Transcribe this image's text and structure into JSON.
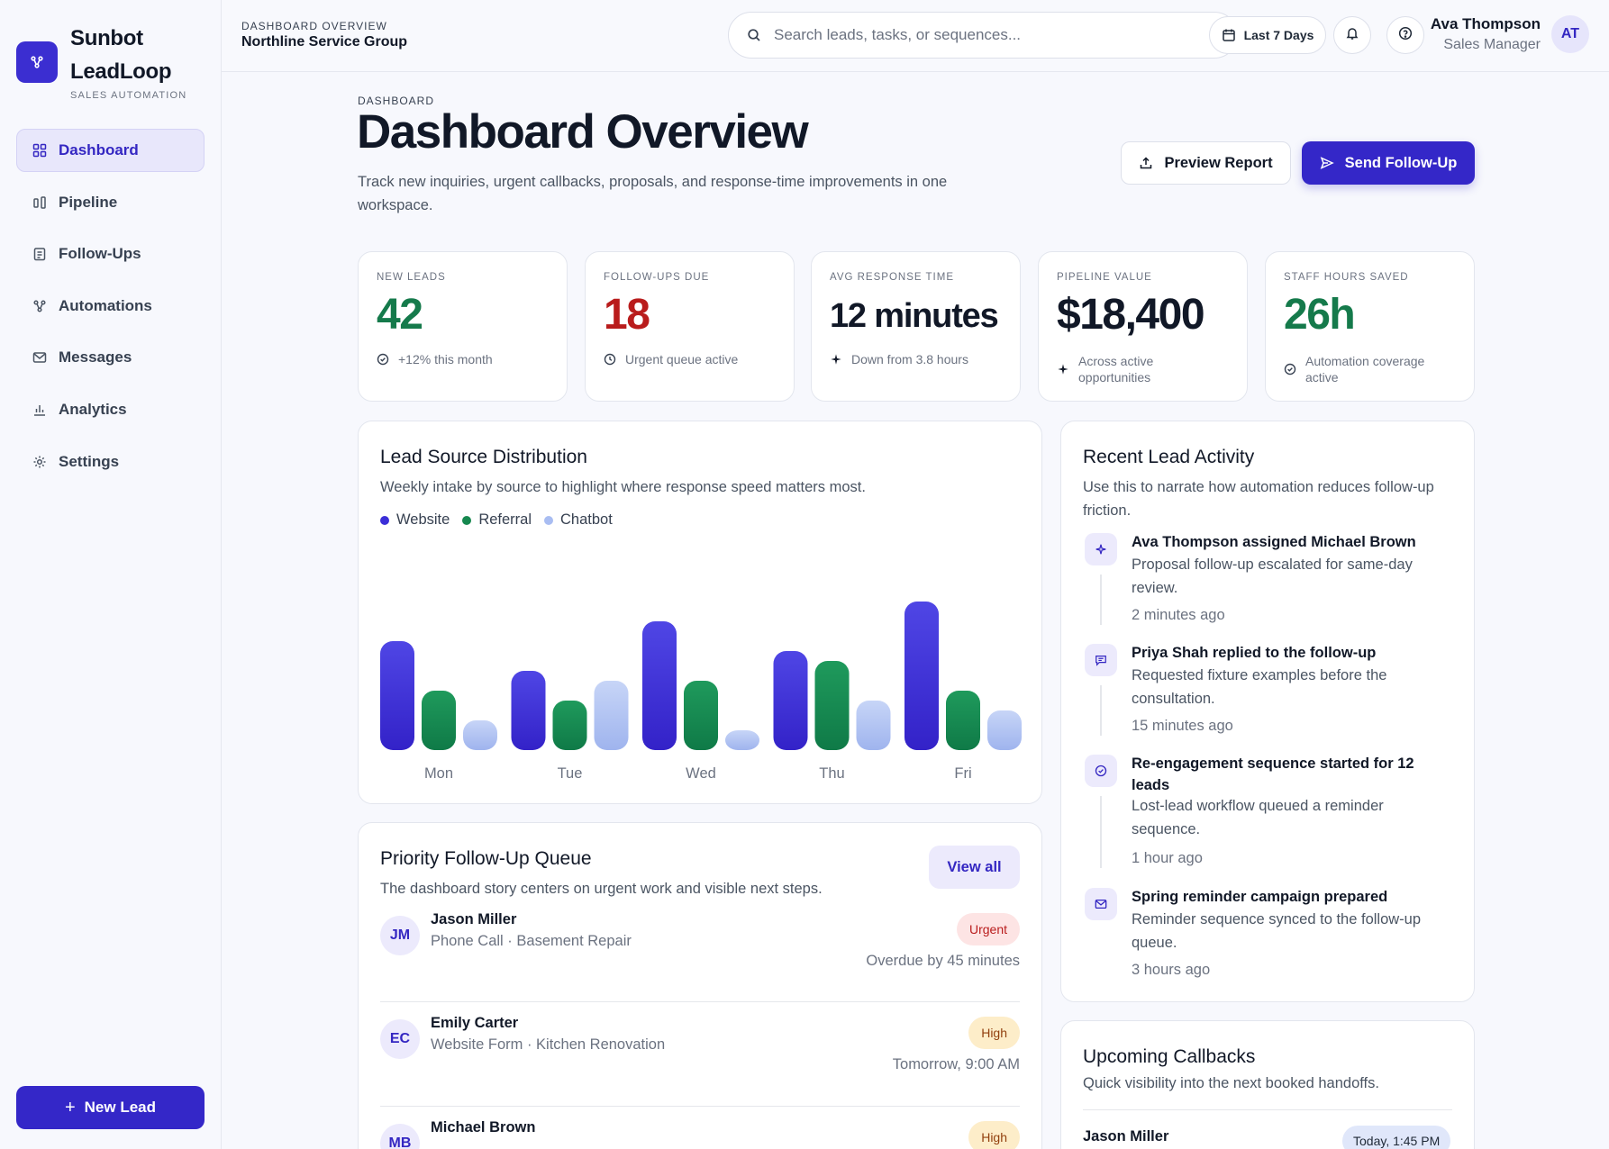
{
  "brand": {
    "name": "Sunbot LeadLoop",
    "tagline": "SALES AUTOMATION"
  },
  "sidebar": {
    "items": [
      {
        "label": "Dashboard",
        "icon": "grid-icon",
        "active": true
      },
      {
        "label": "Pipeline",
        "icon": "pipeline-icon"
      },
      {
        "label": "Follow-Ups",
        "icon": "clipboard-icon"
      },
      {
        "label": "Automations",
        "icon": "nodes-icon"
      },
      {
        "label": "Messages",
        "icon": "mail-icon"
      },
      {
        "label": "Analytics",
        "icon": "bar-chart-icon"
      },
      {
        "label": "Settings",
        "icon": "gear-icon"
      }
    ],
    "new_lead_label": "New Lead"
  },
  "topbar": {
    "eyebrow": "DASHBOARD OVERVIEW",
    "workspace": "Northline Service Group",
    "search_placeholder": "Search leads, tasks, or sequences...",
    "range_label": "Last 7 Days",
    "user_name": "Ava Thompson",
    "user_role": "Sales Manager",
    "user_initials": "AT"
  },
  "header": {
    "eyebrow": "DASHBOARD",
    "title": "Dashboard Overview",
    "description": "Track new inquiries, urgent callbacks, proposals, and response-time improvements in one workspace.",
    "preview_label": "Preview Report",
    "send_label": "Send Follow-Up"
  },
  "kpis": [
    {
      "label": "NEW LEADS",
      "value": "42",
      "color": "#157a4b",
      "foot": "+12% this month",
      "icon": "check-circle-icon"
    },
    {
      "label": "FOLLOW-UPS DUE",
      "value": "18",
      "color": "#b91c1c",
      "foot": "Urgent queue active",
      "icon": "clock-icon"
    },
    {
      "label": "AVG RESPONSE TIME",
      "value": "12 minutes",
      "color": "#111827",
      "foot": "Down from 3.8 hours",
      "icon": "sparkle-icon"
    },
    {
      "label": "PIPELINE VALUE",
      "value": "$18,400",
      "color": "#111827",
      "foot": "Across active opportunities",
      "icon": "sparkle-icon"
    },
    {
      "label": "STAFF HOURS SAVED",
      "value": "26h",
      "color": "#157a4b",
      "foot": "Automation coverage active",
      "icon": "check-circle-icon"
    }
  ],
  "lead_source": {
    "title": "Lead Source Distribution",
    "subtitle": "Weekly intake by source to highlight where response speed matters most."
  },
  "chart_data": {
    "type": "bar",
    "categories": [
      "Mon",
      "Tue",
      "Wed",
      "Thu",
      "Fri"
    ],
    "series": [
      {
        "name": "Website",
        "color": "#3b2ed8",
        "values": [
          22,
          16,
          26,
          20,
          30
        ]
      },
      {
        "name": "Referral",
        "color": "#16884f",
        "values": [
          12,
          10,
          14,
          18,
          12
        ]
      },
      {
        "name": "Chatbot",
        "color": "#a9bdf2",
        "values": [
          6,
          14,
          4,
          10,
          8
        ]
      }
    ],
    "grid": false,
    "legend": "top-left"
  },
  "queue": {
    "title": "Priority Follow-Up Queue",
    "subtitle": "The dashboard story centers on urgent work and visible next steps.",
    "view_all": "View all",
    "rows": [
      {
        "initials": "JM",
        "name": "Jason Miller",
        "meta": "Phone Call · Basement Repair",
        "badge": "Urgent",
        "when": "Overdue by 45 minutes"
      },
      {
        "initials": "EC",
        "name": "Emily Carter",
        "meta": "Website Form · Kitchen Renovation",
        "badge": "High",
        "when": "Tomorrow, 9:00 AM"
      },
      {
        "initials": "MB",
        "name": "Michael Brown",
        "meta": "",
        "badge": "High",
        "when": ""
      }
    ]
  },
  "activity": {
    "title": "Recent Lead Activity",
    "subtitle": "Use this to narrate how automation reduces follow-up friction.",
    "items": [
      {
        "icon": "sparkle-icon",
        "title": "Ava Thompson assigned Michael Brown",
        "desc": "Proposal follow-up escalated for same-day review.",
        "time": "2 minutes ago"
      },
      {
        "icon": "chat-icon",
        "title": "Priya Shah replied to the follow-up",
        "desc": "Requested fixture examples before the consultation.",
        "time": "15 minutes ago"
      },
      {
        "icon": "check-circle-icon",
        "title": "Re-engagement sequence started for 12 leads",
        "desc": "Lost-lead workflow queued a reminder sequence.",
        "time": "1 hour ago"
      },
      {
        "icon": "mail-icon",
        "title": "Spring reminder campaign prepared",
        "desc": "Reminder sequence synced to the follow-up queue.",
        "time": "3 hours ago"
      }
    ]
  },
  "callbacks": {
    "title": "Upcoming Callbacks",
    "subtitle": "Quick visibility into the next booked handoffs.",
    "items": [
      {
        "name": "Jason Miller",
        "time": "Today, 1:45 PM"
      }
    ]
  }
}
